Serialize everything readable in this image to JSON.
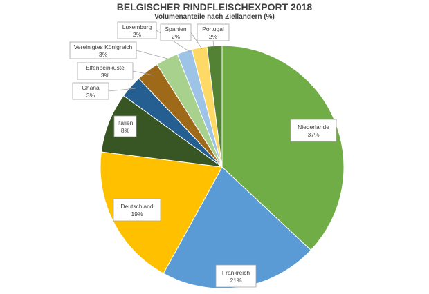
{
  "chart_data": {
    "type": "pie",
    "title": "BELGISCHER RINDFLEISCHEXPORT 2018",
    "subtitle": "Volumenanteile nach Zielländern (%)",
    "slices": [
      {
        "label": "Niederlande",
        "value": 37,
        "display": "37%",
        "color": "#70ad47"
      },
      {
        "label": "Frankreich",
        "value": 21,
        "display": "21%",
        "color": "#5b9bd5"
      },
      {
        "label": "Deutschland",
        "value": 19,
        "display": "19%",
        "color": "#ffc000"
      },
      {
        "label": "Italien",
        "value": 8,
        "display": "8%",
        "color": "#375623"
      },
      {
        "label": "Ghana",
        "value": 3,
        "display": "3%",
        "color": "#255e91"
      },
      {
        "label": "Elfenbeinküste",
        "value": 3,
        "display": "3%",
        "color": "#9e6a1a"
      },
      {
        "label": "Vereinigtes Königreich",
        "value": 3,
        "display": "3%",
        "color": "#a9d18e"
      },
      {
        "label": "Luxemburg",
        "value": 2,
        "display": "2%",
        "color": "#9dc3e6"
      },
      {
        "label": "Spanien",
        "value": 2,
        "display": "2%",
        "color": "#ffd966"
      },
      {
        "label": "Portugal",
        "value": 2,
        "display": "2%",
        "color": "#548235"
      }
    ]
  }
}
